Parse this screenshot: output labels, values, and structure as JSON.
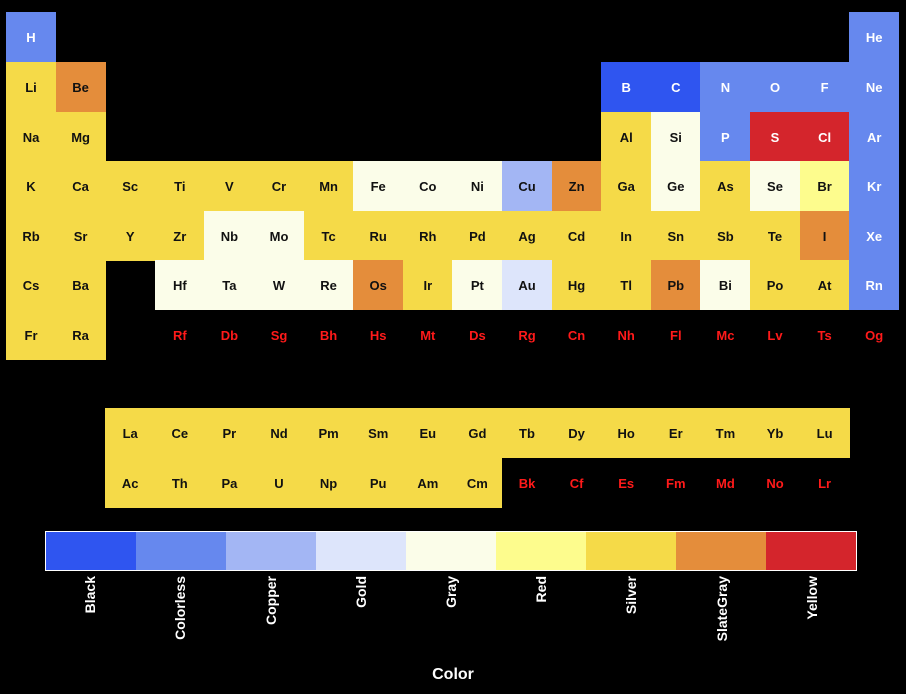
{
  "chart_data": {
    "type": "heatmap",
    "title": "",
    "legend_title": "Color",
    "categories": [
      "Black",
      "Colorless",
      "Copper",
      "Gold",
      "Gray",
      "Red",
      "Silver",
      "SlateGray",
      "Yellow"
    ],
    "palette": [
      "#2f55f0",
      "#6688ee",
      "#a3b6f4",
      "#dde5fb",
      "#fbfde9",
      "#fdfc8d",
      "#f5da48",
      "#e48d3b",
      "#d4252c"
    ],
    "no_data_color": "#000000",
    "no_data_text_color": "#ff1a1a",
    "elements": [
      {
        "symbol": "H",
        "period": 1,
        "group": 1,
        "color": "Colorless"
      },
      {
        "symbol": "He",
        "period": 1,
        "group": 18,
        "color": "Colorless"
      },
      {
        "symbol": "Li",
        "period": 2,
        "group": 1,
        "color": "Silver"
      },
      {
        "symbol": "Be",
        "period": 2,
        "group": 2,
        "color": "SlateGray"
      },
      {
        "symbol": "B",
        "period": 2,
        "group": 13,
        "color": "Black"
      },
      {
        "symbol": "C",
        "period": 2,
        "group": 14,
        "color": "Black"
      },
      {
        "symbol": "N",
        "period": 2,
        "group": 15,
        "color": "Colorless"
      },
      {
        "symbol": "O",
        "period": 2,
        "group": 16,
        "color": "Colorless"
      },
      {
        "symbol": "F",
        "period": 2,
        "group": 17,
        "color": "Colorless"
      },
      {
        "symbol": "Ne",
        "period": 2,
        "group": 18,
        "color": "Colorless"
      },
      {
        "symbol": "Na",
        "period": 3,
        "group": 1,
        "color": "Silver"
      },
      {
        "symbol": "Mg",
        "period": 3,
        "group": 2,
        "color": "Silver"
      },
      {
        "symbol": "Al",
        "period": 3,
        "group": 13,
        "color": "Silver"
      },
      {
        "symbol": "Si",
        "period": 3,
        "group": 14,
        "color": "Gray"
      },
      {
        "symbol": "P",
        "period": 3,
        "group": 15,
        "color": "Colorless"
      },
      {
        "symbol": "S",
        "period": 3,
        "group": 16,
        "color": "Yellow"
      },
      {
        "symbol": "Cl",
        "period": 3,
        "group": 17,
        "color": "Yellow"
      },
      {
        "symbol": "Ar",
        "period": 3,
        "group": 18,
        "color": "Colorless"
      },
      {
        "symbol": "K",
        "period": 4,
        "group": 1,
        "color": "Silver"
      },
      {
        "symbol": "Ca",
        "period": 4,
        "group": 2,
        "color": "Silver"
      },
      {
        "symbol": "Sc",
        "period": 4,
        "group": 3,
        "color": "Silver"
      },
      {
        "symbol": "Ti",
        "period": 4,
        "group": 4,
        "color": "Silver"
      },
      {
        "symbol": "V",
        "period": 4,
        "group": 5,
        "color": "Silver"
      },
      {
        "symbol": "Cr",
        "period": 4,
        "group": 6,
        "color": "Silver"
      },
      {
        "symbol": "Mn",
        "period": 4,
        "group": 7,
        "color": "Silver"
      },
      {
        "symbol": "Fe",
        "period": 4,
        "group": 8,
        "color": "Gray"
      },
      {
        "symbol": "Co",
        "period": 4,
        "group": 9,
        "color": "Gray"
      },
      {
        "symbol": "Ni",
        "period": 4,
        "group": 10,
        "color": "Gray"
      },
      {
        "symbol": "Cu",
        "period": 4,
        "group": 11,
        "color": "Copper"
      },
      {
        "symbol": "Zn",
        "period": 4,
        "group": 12,
        "color": "SlateGray"
      },
      {
        "symbol": "Ga",
        "period": 4,
        "group": 13,
        "color": "Silver"
      },
      {
        "symbol": "Ge",
        "period": 4,
        "group": 14,
        "color": "Gray"
      },
      {
        "symbol": "As",
        "period": 4,
        "group": 15,
        "color": "Silver"
      },
      {
        "symbol": "Se",
        "period": 4,
        "group": 16,
        "color": "Gray"
      },
      {
        "symbol": "Br",
        "period": 4,
        "group": 17,
        "color": "Red"
      },
      {
        "symbol": "Kr",
        "period": 4,
        "group": 18,
        "color": "Colorless"
      },
      {
        "symbol": "Rb",
        "period": 5,
        "group": 1,
        "color": "Silver"
      },
      {
        "symbol": "Sr",
        "period": 5,
        "group": 2,
        "color": "Silver"
      },
      {
        "symbol": "Y",
        "period": 5,
        "group": 3,
        "color": "Silver"
      },
      {
        "symbol": "Zr",
        "period": 5,
        "group": 4,
        "color": "Silver"
      },
      {
        "symbol": "Nb",
        "period": 5,
        "group": 5,
        "color": "Gray"
      },
      {
        "symbol": "Mo",
        "period": 5,
        "group": 6,
        "color": "Gray"
      },
      {
        "symbol": "Tc",
        "period": 5,
        "group": 7,
        "color": "Silver"
      },
      {
        "symbol": "Ru",
        "period": 5,
        "group": 8,
        "color": "Silver"
      },
      {
        "symbol": "Rh",
        "period": 5,
        "group": 9,
        "color": "Silver"
      },
      {
        "symbol": "Pd",
        "period": 5,
        "group": 10,
        "color": "Silver"
      },
      {
        "symbol": "Ag",
        "period": 5,
        "group": 11,
        "color": "Silver"
      },
      {
        "symbol": "Cd",
        "period": 5,
        "group": 12,
        "color": "Silver"
      },
      {
        "symbol": "In",
        "period": 5,
        "group": 13,
        "color": "Silver"
      },
      {
        "symbol": "Sn",
        "period": 5,
        "group": 14,
        "color": "Silver"
      },
      {
        "symbol": "Sb",
        "period": 5,
        "group": 15,
        "color": "Silver"
      },
      {
        "symbol": "Te",
        "period": 5,
        "group": 16,
        "color": "Silver"
      },
      {
        "symbol": "I",
        "period": 5,
        "group": 17,
        "color": "SlateGray"
      },
      {
        "symbol": "Xe",
        "period": 5,
        "group": 18,
        "color": "Colorless"
      },
      {
        "symbol": "Cs",
        "period": 6,
        "group": 1,
        "color": "Silver"
      },
      {
        "symbol": "Ba",
        "period": 6,
        "group": 2,
        "color": "Silver"
      },
      {
        "symbol": "Hf",
        "period": 6,
        "group": 4,
        "color": "Gray"
      },
      {
        "symbol": "Ta",
        "period": 6,
        "group": 5,
        "color": "Gray"
      },
      {
        "symbol": "W",
        "period": 6,
        "group": 6,
        "color": "Gray"
      },
      {
        "symbol": "Re",
        "period": 6,
        "group": 7,
        "color": "Gray"
      },
      {
        "symbol": "Os",
        "period": 6,
        "group": 8,
        "color": "SlateGray"
      },
      {
        "symbol": "Ir",
        "period": 6,
        "group": 9,
        "color": "Silver"
      },
      {
        "symbol": "Pt",
        "period": 6,
        "group": 10,
        "color": "Gray"
      },
      {
        "symbol": "Au",
        "period": 6,
        "group": 11,
        "color": "Gold"
      },
      {
        "symbol": "Hg",
        "period": 6,
        "group": 12,
        "color": "Silver"
      },
      {
        "symbol": "Tl",
        "period": 6,
        "group": 13,
        "color": "Silver"
      },
      {
        "symbol": "Pb",
        "period": 6,
        "group": 14,
        "color": "SlateGray"
      },
      {
        "symbol": "Bi",
        "period": 6,
        "group": 15,
        "color": "Gray"
      },
      {
        "symbol": "Po",
        "period": 6,
        "group": 16,
        "color": "Silver"
      },
      {
        "symbol": "At",
        "period": 6,
        "group": 17,
        "color": "Silver"
      },
      {
        "symbol": "Rn",
        "period": 6,
        "group": 18,
        "color": "Colorless"
      },
      {
        "symbol": "Fr",
        "period": 7,
        "group": 1,
        "color": "Silver"
      },
      {
        "symbol": "Ra",
        "period": 7,
        "group": 2,
        "color": "Silver"
      },
      {
        "symbol": "Rf",
        "period": 7,
        "group": 4,
        "color": null
      },
      {
        "symbol": "Db",
        "period": 7,
        "group": 5,
        "color": null
      },
      {
        "symbol": "Sg",
        "period": 7,
        "group": 6,
        "color": null
      },
      {
        "symbol": "Bh",
        "period": 7,
        "group": 7,
        "color": null
      },
      {
        "symbol": "Hs",
        "period": 7,
        "group": 8,
        "color": null
      },
      {
        "symbol": "Mt",
        "period": 7,
        "group": 9,
        "color": null
      },
      {
        "symbol": "Ds",
        "period": 7,
        "group": 10,
        "color": null
      },
      {
        "symbol": "Rg",
        "period": 7,
        "group": 11,
        "color": null
      },
      {
        "symbol": "Cn",
        "period": 7,
        "group": 12,
        "color": null
      },
      {
        "symbol": "Nh",
        "period": 7,
        "group": 13,
        "color": null
      },
      {
        "symbol": "Fl",
        "period": 7,
        "group": 14,
        "color": null
      },
      {
        "symbol": "Mc",
        "period": 7,
        "group": 15,
        "color": null
      },
      {
        "symbol": "Lv",
        "period": 7,
        "group": 16,
        "color": null
      },
      {
        "symbol": "Ts",
        "period": 7,
        "group": 17,
        "color": null
      },
      {
        "symbol": "Og",
        "period": 7,
        "group": 18,
        "color": null
      },
      {
        "symbol": "La",
        "period": 9,
        "group": 3,
        "color": "Silver"
      },
      {
        "symbol": "Ce",
        "period": 9,
        "group": 4,
        "color": "Silver"
      },
      {
        "symbol": "Pr",
        "period": 9,
        "group": 5,
        "color": "Silver"
      },
      {
        "symbol": "Nd",
        "period": 9,
        "group": 6,
        "color": "Silver"
      },
      {
        "symbol": "Pm",
        "period": 9,
        "group": 7,
        "color": "Silver"
      },
      {
        "symbol": "Sm",
        "period": 9,
        "group": 8,
        "color": "Silver"
      },
      {
        "symbol": "Eu",
        "period": 9,
        "group": 9,
        "color": "Silver"
      },
      {
        "symbol": "Gd",
        "period": 9,
        "group": 10,
        "color": "Silver"
      },
      {
        "symbol": "Tb",
        "period": 9,
        "group": 11,
        "color": "Silver"
      },
      {
        "symbol": "Dy",
        "period": 9,
        "group": 12,
        "color": "Silver"
      },
      {
        "symbol": "Ho",
        "period": 9,
        "group": 13,
        "color": "Silver"
      },
      {
        "symbol": "Er",
        "period": 9,
        "group": 14,
        "color": "Silver"
      },
      {
        "symbol": "Tm",
        "period": 9,
        "group": 15,
        "color": "Silver"
      },
      {
        "symbol": "Yb",
        "period": 9,
        "group": 16,
        "color": "Silver"
      },
      {
        "symbol": "Lu",
        "period": 9,
        "group": 17,
        "color": "Silver"
      },
      {
        "symbol": "Ac",
        "period": 10,
        "group": 3,
        "color": "Silver"
      },
      {
        "symbol": "Th",
        "period": 10,
        "group": 4,
        "color": "Silver"
      },
      {
        "symbol": "Pa",
        "period": 10,
        "group": 5,
        "color": "Silver"
      },
      {
        "symbol": "U",
        "period": 10,
        "group": 6,
        "color": "Silver"
      },
      {
        "symbol": "Np",
        "period": 10,
        "group": 7,
        "color": "Silver"
      },
      {
        "symbol": "Pu",
        "period": 10,
        "group": 8,
        "color": "Silver"
      },
      {
        "symbol": "Am",
        "period": 10,
        "group": 9,
        "color": "Silver"
      },
      {
        "symbol": "Cm",
        "period": 10,
        "group": 10,
        "color": "Silver"
      },
      {
        "symbol": "Bk",
        "period": 10,
        "group": 11,
        "color": null
      },
      {
        "symbol": "Cf",
        "period": 10,
        "group": 12,
        "color": null
      },
      {
        "symbol": "Es",
        "period": 10,
        "group": 13,
        "color": null
      },
      {
        "symbol": "Fm",
        "period": 10,
        "group": 14,
        "color": null
      },
      {
        "symbol": "Md",
        "period": 10,
        "group": 15,
        "color": null
      },
      {
        "symbol": "No",
        "period": 10,
        "group": 16,
        "color": null
      },
      {
        "symbol": "Lr",
        "period": 10,
        "group": 17,
        "color": null
      }
    ]
  }
}
